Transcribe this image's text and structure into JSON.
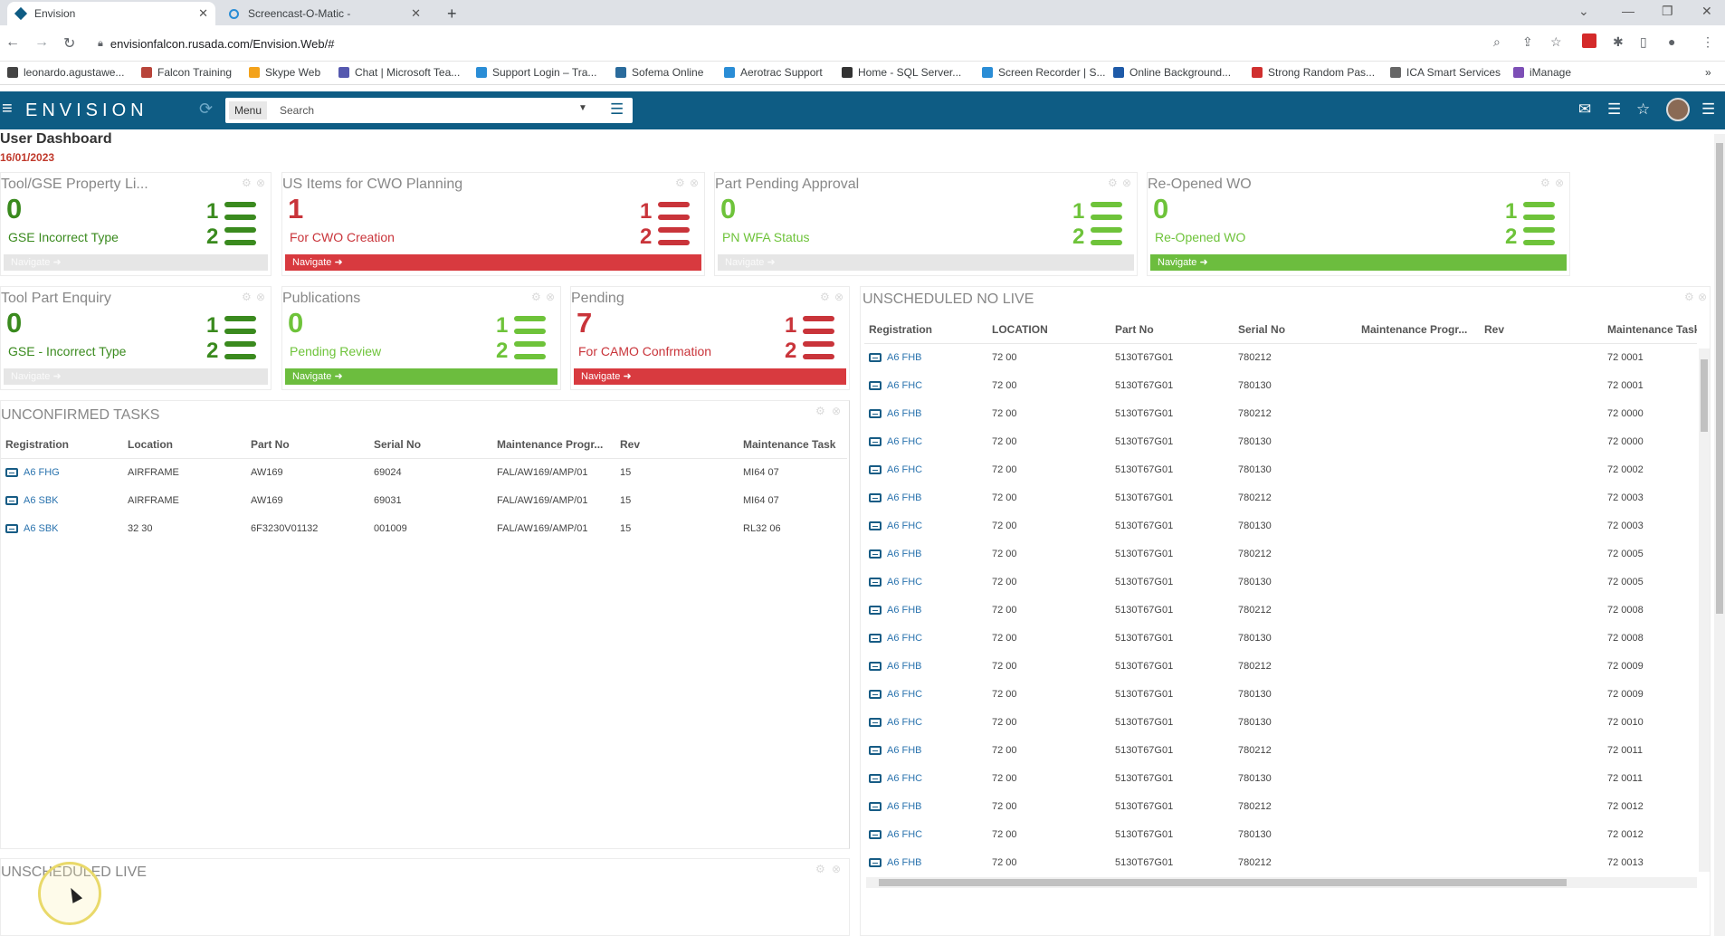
{
  "browser": {
    "tabs": [
      {
        "title": "Envision",
        "active": true
      },
      {
        "title": "Screencast-O-Matic -",
        "active": false
      }
    ],
    "new_tab": "+",
    "url": "envisionfalcon.rusada.com/Envision.Web/#",
    "bookmarks": [
      {
        "label": "leonardo.agustawe...",
        "color": "#444444"
      },
      {
        "label": "Falcon Training",
        "color": "#b8443a"
      },
      {
        "label": "Skype Web",
        "color": "#f3a21b"
      },
      {
        "label": "Chat | Microsoft Tea...",
        "color": "#5558af"
      },
      {
        "label": "Support Login – Tra...",
        "color": "#2a8dd6"
      },
      {
        "label": "Sofema Online",
        "color": "#2a6b9c"
      },
      {
        "label": "Aerotrac Support",
        "color": "#2a8dd6"
      },
      {
        "label": "Home - SQL Server...",
        "color": "#333333"
      },
      {
        "label": "Screen Recorder | S...",
        "color": "#2a8dd6"
      },
      {
        "label": "Online Background...",
        "color": "#1e5aa8"
      },
      {
        "label": "Strong Random Pas...",
        "color": "#d0302f"
      },
      {
        "label": "ICA Smart Services",
        "color": "#666666"
      },
      {
        "label": "iManage",
        "color": "#7d4fb6"
      }
    ]
  },
  "app": {
    "logo": "ENVISION",
    "menu_label": "Menu",
    "search_placeholder": "Search"
  },
  "dashboard": {
    "title": "User Dashboard",
    "date": "16/01/2023",
    "navigate_label": "Navigate",
    "widgets": [
      {
        "id": "tool-gse",
        "title": "Tool/GSE Property Li...",
        "count": "0",
        "subtitle": "GSE Incorrect Type",
        "color": "green",
        "nav": "grey"
      },
      {
        "id": "us-items",
        "title": "US Items for CWO Planning",
        "count": "1",
        "subtitle": "For CWO Creation",
        "color": "red",
        "nav": "red"
      },
      {
        "id": "part-pending",
        "title": "Part Pending Approval",
        "count": "0",
        "subtitle": "PN WFA Status",
        "color": "lgreen",
        "nav": "grey"
      },
      {
        "id": "reopened",
        "title": "Re-Opened WO",
        "count": "0",
        "subtitle": "Re-Opened WO",
        "color": "lgreen",
        "nav": "green"
      },
      {
        "id": "tool-part",
        "title": "Tool Part Enquiry",
        "count": "0",
        "subtitle": "GSE - Incorrect Type",
        "color": "green",
        "nav": "grey"
      },
      {
        "id": "publications",
        "title": "Publications",
        "count": "0",
        "subtitle": "Pending Review",
        "color": "lgreen",
        "nav": "green"
      },
      {
        "id": "pending",
        "title": "Pending",
        "count": "7",
        "subtitle": "For CAMO Confrmation",
        "color": "red",
        "nav": "red"
      }
    ],
    "unconfirmed": {
      "title": "UNCONFIRMED TASKS",
      "columns": [
        "Registration",
        "Location",
        "Part No",
        "Serial No",
        "Maintenance Progr...",
        "Rev",
        "Maintenance Task"
      ],
      "rows": [
        [
          "A6 FHG",
          "AIRFRAME",
          "AW169",
          "69024",
          "FAL/AW169/AMP/01",
          "15",
          "MI64 07"
        ],
        [
          "A6 SBK",
          "AIRFRAME",
          "AW169",
          "69031",
          "FAL/AW169/AMP/01",
          "15",
          "MI64 07"
        ],
        [
          "A6 SBK",
          "32 30",
          "6F3230V01132",
          "001009",
          "FAL/AW169/AMP/01",
          "15",
          "RL32 06"
        ]
      ]
    },
    "unscheduled_no_live": {
      "title": "UNSCHEDULED NO LIVE",
      "columns": [
        "Registration",
        "LOCATION",
        "Part No",
        "Serial No",
        "Maintenance Progr...",
        "Rev",
        "Maintenance Task"
      ],
      "rows": [
        [
          "A6 FHB",
          "72 00",
          "5130T67G01",
          "780212",
          "",
          "",
          "72 0001"
        ],
        [
          "A6 FHC",
          "72 00",
          "5130T67G01",
          "780130",
          "",
          "",
          "72 0001"
        ],
        [
          "A6 FHB",
          "72 00",
          "5130T67G01",
          "780212",
          "",
          "",
          "72 0000"
        ],
        [
          "A6 FHC",
          "72 00",
          "5130T67G01",
          "780130",
          "",
          "",
          "72 0000"
        ],
        [
          "A6 FHC",
          "72 00",
          "5130T67G01",
          "780130",
          "",
          "",
          "72 0002"
        ],
        [
          "A6 FHB",
          "72 00",
          "5130T67G01",
          "780212",
          "",
          "",
          "72 0003"
        ],
        [
          "A6 FHC",
          "72 00",
          "5130T67G01",
          "780130",
          "",
          "",
          "72 0003"
        ],
        [
          "A6 FHB",
          "72 00",
          "5130T67G01",
          "780212",
          "",
          "",
          "72 0005"
        ],
        [
          "A6 FHC",
          "72 00",
          "5130T67G01",
          "780130",
          "",
          "",
          "72 0005"
        ],
        [
          "A6 FHB",
          "72 00",
          "5130T67G01",
          "780212",
          "",
          "",
          "72 0008"
        ],
        [
          "A6 FHC",
          "72 00",
          "5130T67G01",
          "780130",
          "",
          "",
          "72 0008"
        ],
        [
          "A6 FHB",
          "72 00",
          "5130T67G01",
          "780212",
          "",
          "",
          "72 0009"
        ],
        [
          "A6 FHC",
          "72 00",
          "5130T67G01",
          "780130",
          "",
          "",
          "72 0009"
        ],
        [
          "A6 FHC",
          "72 00",
          "5130T67G01",
          "780130",
          "",
          "",
          "72 0010"
        ],
        [
          "A6 FHB",
          "72 00",
          "5130T67G01",
          "780212",
          "",
          "",
          "72 0011"
        ],
        [
          "A6 FHC",
          "72 00",
          "5130T67G01",
          "780130",
          "",
          "",
          "72 0011"
        ],
        [
          "A6 FHB",
          "72 00",
          "5130T67G01",
          "780212",
          "",
          "",
          "72 0012"
        ],
        [
          "A6 FHC",
          "72 00",
          "5130T67G01",
          "780130",
          "",
          "",
          "72 0012"
        ],
        [
          "A6 FHB",
          "72 00",
          "5130T67G01",
          "780212",
          "",
          "",
          "72 0013"
        ]
      ]
    },
    "unscheduled_live": {
      "title": "UNSCHEDULED LIVE"
    }
  }
}
